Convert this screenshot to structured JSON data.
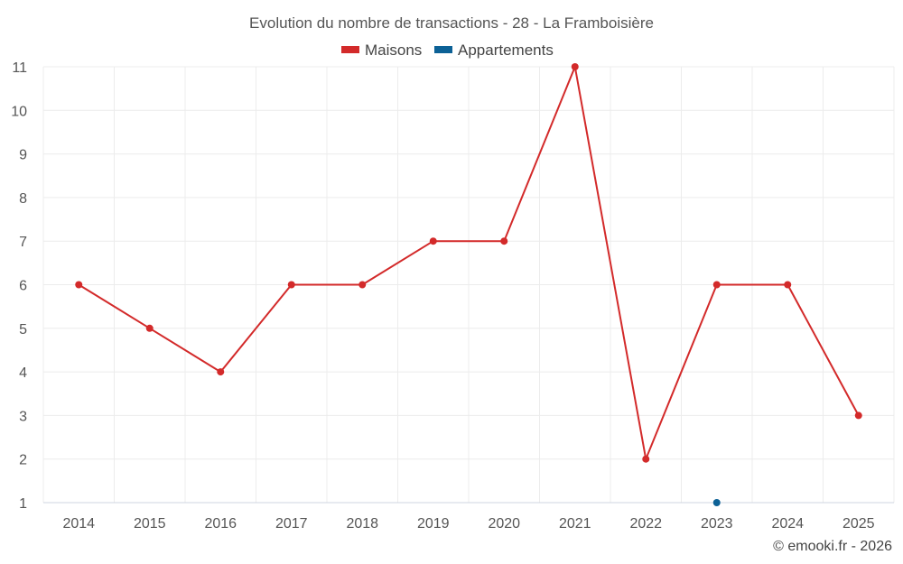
{
  "chart_data": {
    "type": "line",
    "title": "Evolution du nombre de transactions - 28 - La Framboisière",
    "categories": [
      "2014",
      "2015",
      "2016",
      "2017",
      "2018",
      "2019",
      "2020",
      "2021",
      "2022",
      "2023",
      "2024",
      "2025"
    ],
    "series": [
      {
        "name": "Maisons",
        "color": "#d32a2a",
        "values": [
          6,
          5,
          4,
          6,
          6,
          7,
          7,
          11,
          2,
          6,
          6,
          3
        ]
      },
      {
        "name": "Appartements",
        "color": "#0c6196",
        "values": [
          null,
          null,
          null,
          null,
          null,
          null,
          null,
          null,
          null,
          1,
          null,
          null
        ]
      }
    ],
    "ylim": [
      1,
      11
    ],
    "yticks": [
      "1",
      "2",
      "3",
      "4",
      "5",
      "6",
      "7",
      "8",
      "9",
      "10",
      "11"
    ],
    "grid": true,
    "legend_position": "top-center"
  },
  "credit": "© emooki.fr - 2026"
}
